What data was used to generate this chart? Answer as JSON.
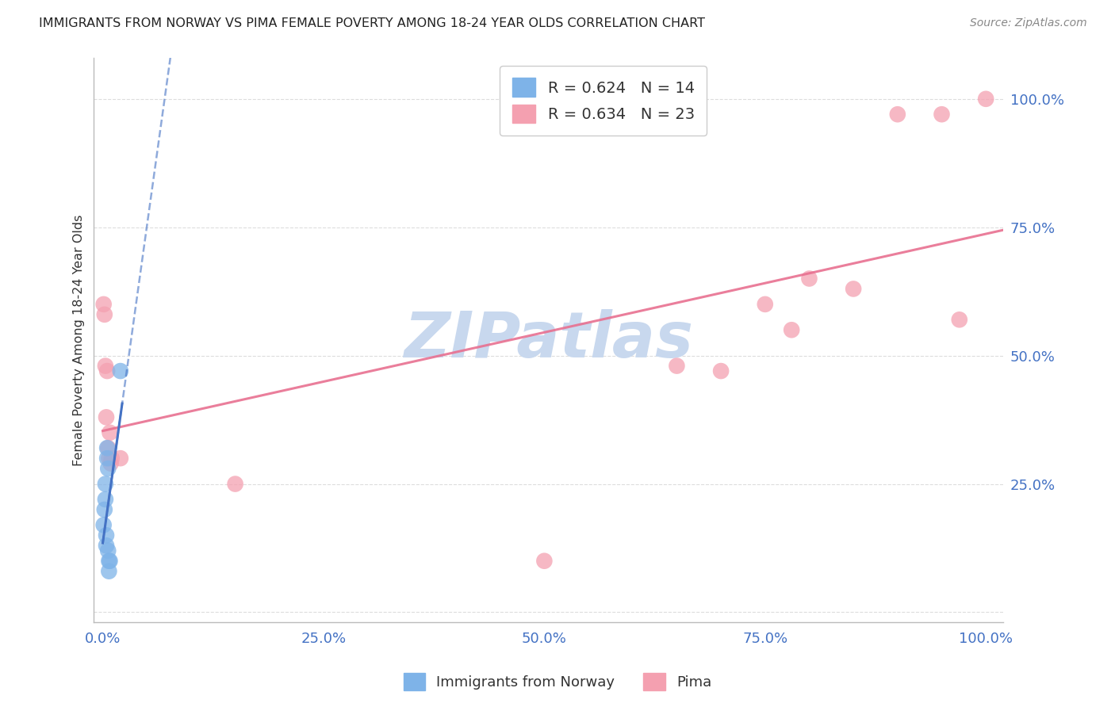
{
  "title": "IMMIGRANTS FROM NORWAY VS PIMA FEMALE POVERTY AMONG 18-24 YEAR OLDS CORRELATION CHART",
  "source": "Source: ZipAtlas.com",
  "ylabel": "Female Poverty Among 18-24 Year Olds",
  "watermark": "ZIPatlas",
  "legend1_label": "R = 0.624   N = 14",
  "legend2_label": "R = 0.634   N = 23",
  "legend_bottom1": "Immigrants from Norway",
  "legend_bottom2": "Pima",
  "norway_x": [
    0.001,
    0.002,
    0.003,
    0.003,
    0.004,
    0.004,
    0.005,
    0.005,
    0.006,
    0.006,
    0.007,
    0.007,
    0.008,
    0.02
  ],
  "norway_y": [
    0.17,
    0.2,
    0.22,
    0.25,
    0.15,
    0.13,
    0.3,
    0.32,
    0.28,
    0.12,
    0.1,
    0.08,
    0.1,
    0.47
  ],
  "pima_x": [
    0.001,
    0.002,
    0.003,
    0.004,
    0.005,
    0.006,
    0.007,
    0.008,
    0.009,
    0.01,
    0.02,
    0.15,
    0.5,
    0.65,
    0.7,
    0.75,
    0.78,
    0.8,
    0.85,
    0.9,
    0.95,
    0.97,
    1.0
  ],
  "pima_y": [
    0.6,
    0.58,
    0.48,
    0.38,
    0.47,
    0.32,
    0.3,
    0.35,
    0.29,
    0.3,
    0.3,
    0.25,
    0.1,
    0.48,
    0.47,
    0.6,
    0.55,
    0.65,
    0.63,
    0.97,
    0.97,
    0.57,
    1.0
  ],
  "norway_color": "#7EB3E8",
  "pima_color": "#F4A0B0",
  "norway_line_color": "#4472C4",
  "pima_line_color": "#E87090",
  "bg_color": "#FFFFFF",
  "grid_color": "#DDDDDD",
  "title_color": "#222222",
  "axis_label_color": "#333333",
  "tick_color": "#4472C4",
  "watermark_color": "#C8D8EE",
  "xlim": [
    0.0,
    1.0
  ],
  "ylim": [
    0.0,
    1.05
  ],
  "xtick_vals": [
    0.0,
    0.25,
    0.5,
    0.75,
    1.0
  ],
  "xtick_labels": [
    "0.0%",
    "25.0%",
    "50.0%",
    "75.0%",
    "100.0%"
  ],
  "ytick_vals": [
    0.25,
    0.5,
    0.75,
    1.0
  ],
  "ytick_labels": [
    "25.0%",
    "50.0%",
    "75.0%",
    "100.0%"
  ]
}
